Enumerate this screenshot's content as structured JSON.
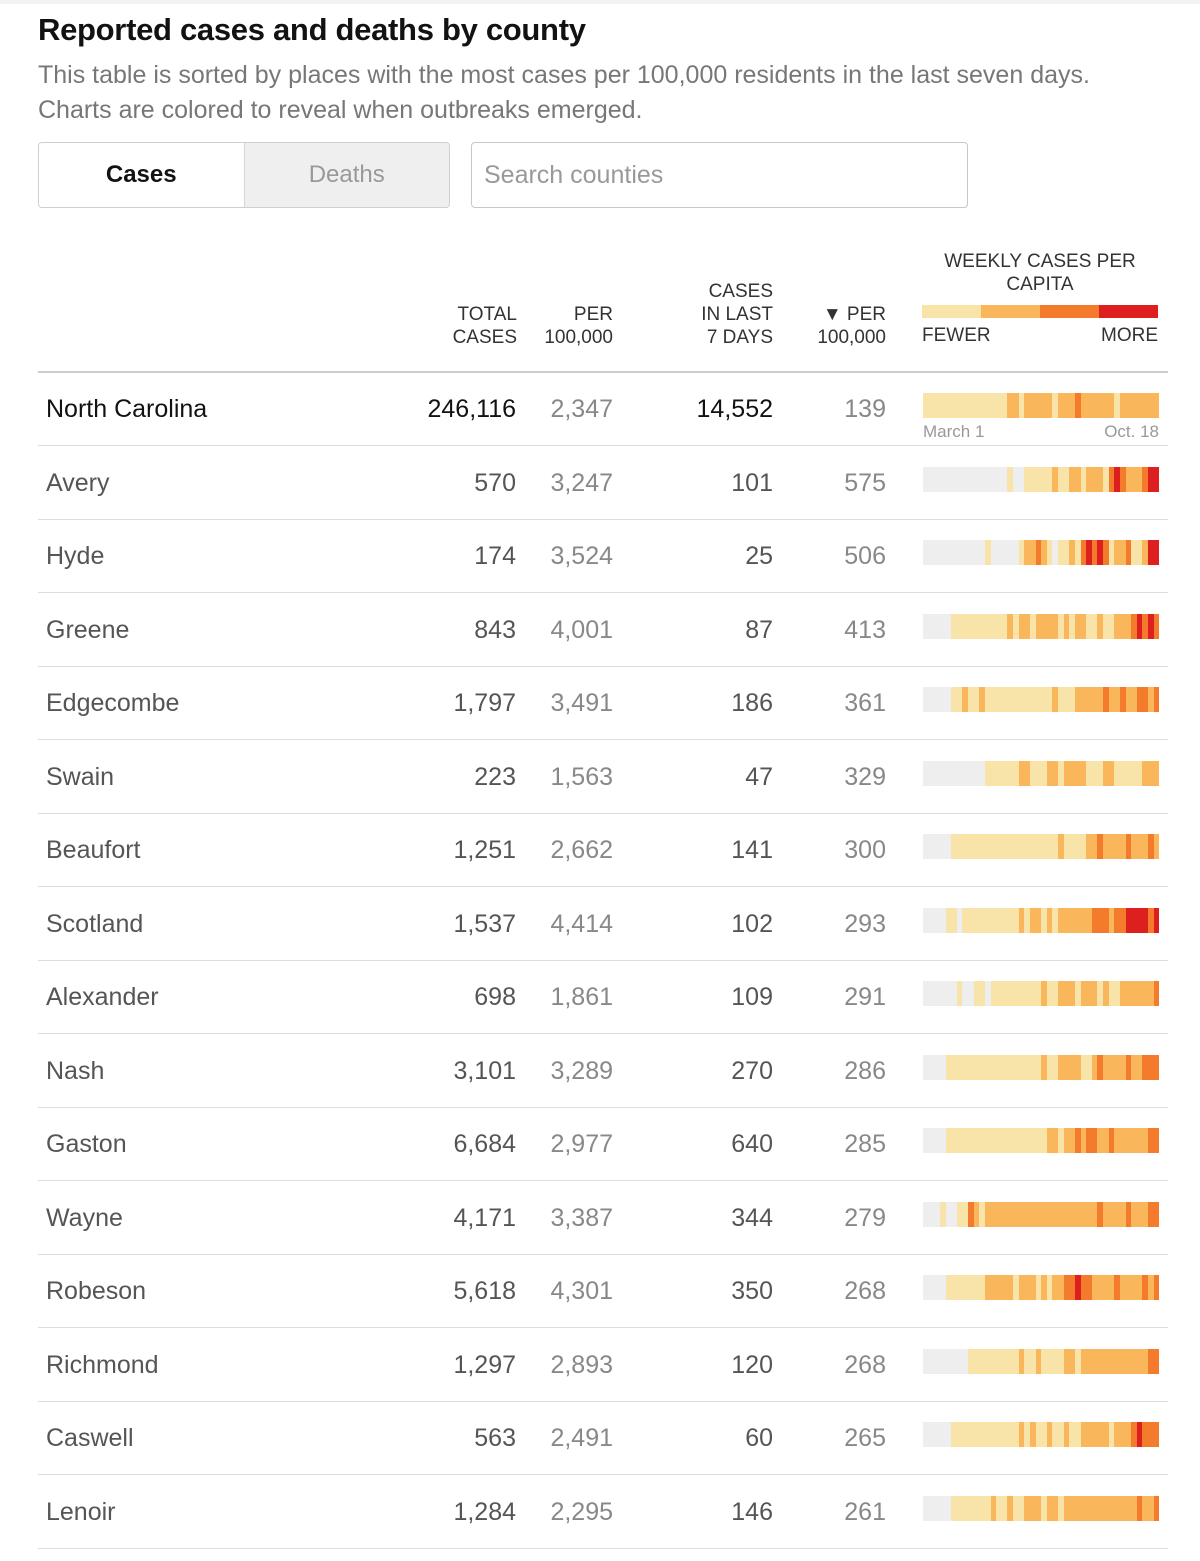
{
  "title": "Reported cases and deaths by county",
  "subtitle": "This table is sorted by places with the most cases per 100,000 residents in the last seven days. Charts are colored to reveal when outbreaks emerged.",
  "tabs": {
    "cases": "Cases",
    "deaths": "Deaths",
    "active": "cases"
  },
  "search": {
    "placeholder": "Search counties"
  },
  "columns": {
    "total_cases": [
      "TOTAL",
      "CASES"
    ],
    "per_100k": [
      "PER",
      "100,000"
    ],
    "cases_7d": [
      "CASES",
      "IN LAST",
      "7 DAYS"
    ],
    "per_100k_7d": [
      "▼ PER",
      "100,000"
    ],
    "weekly": "WEEKLY CASES PER CAPITA"
  },
  "legend": {
    "fewer": "FEWER",
    "more": "MORE",
    "colors": [
      "#f8e3a8",
      "#f9b65a",
      "#f47a2c",
      "#de1f1f"
    ]
  },
  "axis": {
    "start": "March 1",
    "end": "Oct. 18"
  },
  "colors": {
    "none": "#eeeeee"
  },
  "rows": [
    {
      "name": "North Carolina",
      "total": "246,116",
      "per100k": "2,347",
      "cases7": "14,552",
      "per7": "139",
      "state": true,
      "weekly": [
        1,
        1,
        1,
        1,
        1,
        1,
        1,
        1,
        1,
        1,
        1,
        1,
        1,
        1,
        1,
        2,
        2,
        1,
        2,
        2,
        2,
        2,
        2,
        1,
        2,
        2,
        2,
        3,
        2,
        2,
        2,
        2,
        2,
        2,
        1,
        2,
        2,
        2,
        2,
        2,
        2,
        2
      ]
    },
    {
      "name": "Avery",
      "total": "570",
      "per100k": "3,247",
      "cases7": "101",
      "per7": "575",
      "weekly": [
        0,
        0,
        0,
        0,
        0,
        0,
        0,
        0,
        0,
        0,
        0,
        0,
        0,
        0,
        0,
        1,
        0,
        0,
        1,
        1,
        1,
        1,
        1,
        2,
        1,
        1,
        2,
        2,
        1,
        2,
        2,
        2,
        1,
        3,
        4,
        3,
        2,
        2,
        2,
        3,
        4,
        4
      ]
    },
    {
      "name": "Hyde",
      "total": "174",
      "per100k": "3,524",
      "cases7": "25",
      "per7": "506",
      "weekly": [
        0,
        0,
        0,
        0,
        0,
        0,
        0,
        0,
        0,
        0,
        0,
        1,
        0,
        0,
        0,
        0,
        0,
        1,
        2,
        2,
        3,
        2,
        1,
        0,
        1,
        1,
        2,
        1,
        3,
        4,
        3,
        4,
        3,
        1,
        2,
        2,
        3,
        1,
        1,
        2,
        4,
        4
      ]
    },
    {
      "name": "Greene",
      "total": "843",
      "per100k": "4,001",
      "cases7": "87",
      "per7": "413",
      "weekly": [
        0,
        0,
        0,
        0,
        0,
        1,
        1,
        1,
        1,
        1,
        1,
        1,
        1,
        1,
        1,
        2,
        1,
        2,
        2,
        1,
        2,
        2,
        2,
        2,
        1,
        2,
        1,
        2,
        2,
        1,
        1,
        2,
        1,
        1,
        2,
        2,
        2,
        3,
        4,
        3,
        4,
        3
      ]
    },
    {
      "name": "Edgecombe",
      "total": "1,797",
      "per100k": "3,491",
      "cases7": "186",
      "per7": "361",
      "weekly": [
        0,
        0,
        0,
        0,
        0,
        1,
        1,
        2,
        1,
        1,
        2,
        1,
        1,
        1,
        1,
        1,
        1,
        1,
        1,
        1,
        1,
        1,
        1,
        2,
        1,
        1,
        1,
        2,
        2,
        2,
        2,
        2,
        3,
        2,
        2,
        3,
        2,
        2,
        3,
        3,
        2,
        3
      ]
    },
    {
      "name": "Swain",
      "total": "223",
      "per100k": "1,563",
      "cases7": "47",
      "per7": "329",
      "weekly": [
        0,
        0,
        0,
        0,
        0,
        0,
        0,
        0,
        0,
        0,
        0,
        1,
        1,
        1,
        1,
        1,
        1,
        2,
        2,
        1,
        1,
        1,
        2,
        2,
        1,
        2,
        2,
        2,
        2,
        1,
        1,
        1,
        2,
        2,
        1,
        1,
        1,
        1,
        1,
        2,
        2,
        2
      ]
    },
    {
      "name": "Beaufort",
      "total": "1,251",
      "per100k": "2,662",
      "cases7": "141",
      "per7": "300",
      "weekly": [
        0,
        0,
        0,
        0,
        0,
        1,
        1,
        1,
        1,
        1,
        1,
        1,
        1,
        1,
        1,
        1,
        1,
        1,
        1,
        1,
        1,
        1,
        1,
        1,
        2,
        1,
        1,
        1,
        1,
        2,
        2,
        3,
        2,
        2,
        2,
        2,
        3,
        2,
        2,
        2,
        3,
        2
      ]
    },
    {
      "name": "Scotland",
      "total": "1,537",
      "per100k": "4,414",
      "cases7": "102",
      "per7": "293",
      "weekly": [
        0,
        0,
        0,
        0,
        1,
        1,
        0,
        1,
        1,
        1,
        1,
        1,
        1,
        1,
        1,
        1,
        1,
        2,
        1,
        2,
        2,
        1,
        2,
        1,
        2,
        2,
        2,
        2,
        2,
        2,
        3,
        3,
        3,
        2,
        3,
        3,
        4,
        4,
        4,
        4,
        3,
        4
      ]
    },
    {
      "name": "Alexander",
      "total": "698",
      "per100k": "1,861",
      "cases7": "109",
      "per7": "291",
      "weekly": [
        0,
        0,
        0,
        0,
        0,
        0,
        1,
        0,
        0,
        1,
        1,
        0,
        1,
        1,
        1,
        1,
        1,
        1,
        1,
        1,
        1,
        2,
        1,
        1,
        2,
        2,
        2,
        1,
        2,
        2,
        2,
        1,
        2,
        1,
        1,
        2,
        2,
        2,
        2,
        2,
        2,
        3
      ]
    },
    {
      "name": "Nash",
      "total": "3,101",
      "per100k": "3,289",
      "cases7": "270",
      "per7": "286",
      "weekly": [
        0,
        0,
        0,
        0,
        1,
        1,
        1,
        1,
        1,
        1,
        1,
        1,
        1,
        1,
        1,
        1,
        1,
        1,
        1,
        1,
        1,
        2,
        1,
        1,
        2,
        2,
        2,
        2,
        1,
        1,
        2,
        3,
        2,
        2,
        2,
        2,
        3,
        2,
        2,
        3,
        3,
        3
      ]
    },
    {
      "name": "Gaston",
      "total": "6,684",
      "per100k": "2,977",
      "cases7": "640",
      "per7": "285",
      "weekly": [
        0,
        0,
        0,
        0,
        1,
        1,
        1,
        1,
        1,
        1,
        1,
        1,
        1,
        1,
        1,
        1,
        1,
        1,
        1,
        1,
        1,
        1,
        2,
        2,
        1,
        2,
        2,
        3,
        2,
        3,
        3,
        2,
        2,
        3,
        2,
        2,
        2,
        2,
        2,
        2,
        3,
        3
      ]
    },
    {
      "name": "Wayne",
      "total": "4,171",
      "per100k": "3,387",
      "cases7": "344",
      "per7": "279",
      "weekly": [
        0,
        0,
        0,
        1,
        0,
        0,
        1,
        1,
        3,
        2,
        1,
        2,
        2,
        2,
        2,
        2,
        2,
        2,
        2,
        2,
        2,
        2,
        2,
        2,
        2,
        2,
        2,
        2,
        2,
        2,
        2,
        3,
        2,
        2,
        2,
        2,
        3,
        2,
        2,
        2,
        3,
        3
      ]
    },
    {
      "name": "Robeson",
      "total": "5,618",
      "per100k": "4,301",
      "cases7": "350",
      "per7": "268",
      "weekly": [
        0,
        0,
        0,
        0,
        1,
        1,
        1,
        1,
        1,
        1,
        1,
        2,
        2,
        2,
        2,
        2,
        1,
        2,
        2,
        2,
        1,
        2,
        1,
        2,
        2,
        3,
        3,
        4,
        3,
        3,
        2,
        2,
        2,
        2,
        3,
        2,
        2,
        2,
        2,
        3,
        2,
        3
      ]
    },
    {
      "name": "Richmond",
      "total": "1,297",
      "per100k": "2,893",
      "cases7": "120",
      "per7": "268",
      "weekly": [
        0,
        0,
        0,
        0,
        0,
        0,
        0,
        0,
        1,
        1,
        1,
        1,
        1,
        1,
        1,
        1,
        1,
        2,
        1,
        1,
        2,
        1,
        1,
        1,
        1,
        2,
        2,
        1,
        2,
        2,
        2,
        2,
        2,
        2,
        2,
        2,
        2,
        2,
        2,
        2,
        3,
        3
      ]
    },
    {
      "name": "Caswell",
      "total": "563",
      "per100k": "2,491",
      "cases7": "60",
      "per7": "265",
      "weekly": [
        0,
        0,
        0,
        0,
        0,
        1,
        1,
        1,
        1,
        1,
        1,
        1,
        1,
        1,
        1,
        1,
        1,
        2,
        1,
        2,
        1,
        1,
        2,
        1,
        1,
        2,
        1,
        1,
        2,
        2,
        2,
        2,
        2,
        1,
        2,
        2,
        2,
        3,
        4,
        3,
        3,
        3
      ]
    },
    {
      "name": "Lenoir",
      "total": "1,284",
      "per100k": "2,295",
      "cases7": "146",
      "per7": "261",
      "weekly": [
        0,
        0,
        0,
        0,
        0,
        1,
        1,
        1,
        1,
        1,
        1,
        1,
        2,
        1,
        1,
        2,
        1,
        1,
        2,
        2,
        2,
        1,
        2,
        2,
        1,
        2,
        2,
        2,
        2,
        2,
        2,
        2,
        2,
        2,
        2,
        2,
        2,
        2,
        3,
        2,
        2,
        3
      ]
    }
  ]
}
